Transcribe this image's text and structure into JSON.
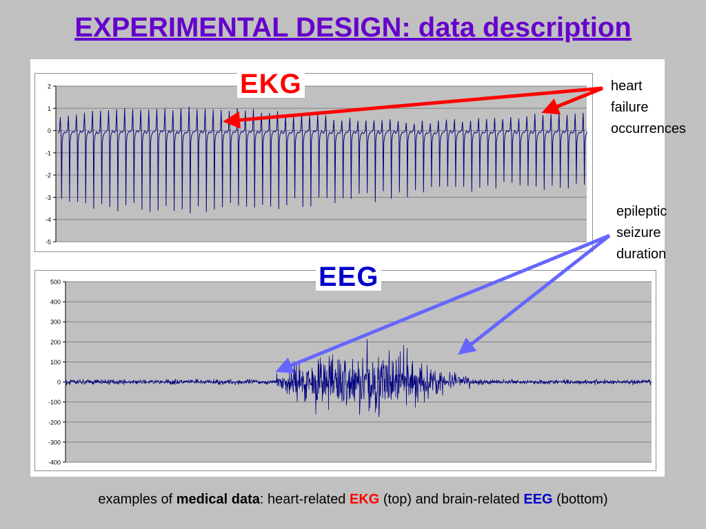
{
  "slide": {
    "title": "EXPERIMENTAL DESIGN: data description"
  },
  "annotations": {
    "heart": [
      "heart",
      "failure",
      "occurrences"
    ],
    "seizure": [
      "epileptic",
      "seizure",
      "duration"
    ]
  },
  "caption": {
    "prefix": "examples of ",
    "bold1": "medical data",
    "mid1": ": heart-related ",
    "ekg": "EKG",
    "mid2": " (top) and brain-related ",
    "eeg": "EEG",
    "suffix": " (bottom)"
  },
  "colors": {
    "title": "#6600cc",
    "line": "#000080",
    "ekg_label": "#ff0000",
    "eeg_label": "#0000cc",
    "ekg_arrow": "#ff0000",
    "eeg_arrow": "#6666ff",
    "grid": "#808080",
    "plot_bg": "#c0c0c0"
  },
  "chart_data": [
    {
      "type": "line",
      "label": "EKG",
      "ylim": [
        -5,
        2
      ],
      "yticks": [
        "2",
        "1",
        "0",
        "-1",
        "-2",
        "-3",
        "-4",
        "-5"
      ],
      "grid": true,
      "beats": 66,
      "baseline": -0.1,
      "r_peak_range": [
        0.4,
        1.0
      ],
      "s_trough_range": [
        -3.8,
        -2.3
      ]
    },
    {
      "type": "line",
      "label": "EEG",
      "ylim": [
        -400,
        500
      ],
      "yticks": [
        "500",
        "400",
        "300",
        "200",
        "100",
        "0",
        "-100",
        "-200",
        "-300",
        "-400"
      ],
      "grid": true,
      "baseline_amplitude": 20,
      "seizure_peak_amplitude": 400
    }
  ]
}
